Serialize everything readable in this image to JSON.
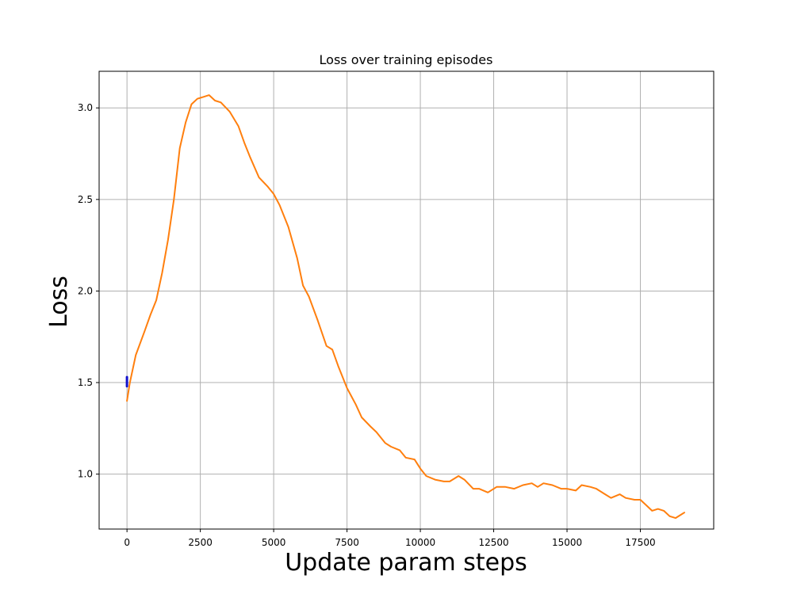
{
  "chart_data": {
    "type": "line",
    "title": "Loss over training episodes",
    "xlabel": "Update param steps",
    "ylabel": "Loss",
    "xlim": [
      -950,
      20000
    ],
    "ylim": [
      0.7,
      3.2
    ],
    "grid": true,
    "x_ticks": [
      0,
      2500,
      5000,
      7500,
      10000,
      12500,
      15000,
      17500
    ],
    "x_tick_labels": [
      "0",
      "2500",
      "5000",
      "7500",
      "10000",
      "12500",
      "15000",
      "17500"
    ],
    "y_ticks": [
      1.0,
      1.5,
      2.0,
      2.5,
      3.0
    ],
    "y_tick_labels": [
      "1.0",
      "1.5",
      "2.0",
      "2.5",
      "3.0"
    ],
    "series": [
      {
        "color": "#1111cc",
        "x": [
          0,
          0
        ],
        "y": [
          1.48,
          1.53
        ]
      },
      {
        "color": "#ff7f0e",
        "x": [
          0,
          100,
          300,
          600,
          800,
          1000,
          1200,
          1400,
          1600,
          1800,
          2000,
          2200,
          2400,
          2600,
          2800,
          3000,
          3200,
          3500,
          3800,
          4000,
          4200,
          4500,
          4800,
          5000,
          5200,
          5500,
          5800,
          6000,
          6200,
          6500,
          6800,
          7000,
          7200,
          7500,
          7800,
          8000,
          8300,
          8500,
          8800,
          9000,
          9300,
          9500,
          9800,
          10000,
          10200,
          10500,
          10800,
          11000,
          11300,
          11500,
          11800,
          12000,
          12300,
          12600,
          12900,
          13200,
          13500,
          13800,
          14000,
          14200,
          14500,
          14800,
          15000,
          15300,
          15500,
          15800,
          16000,
          16300,
          16500,
          16800,
          17000,
          17300,
          17500,
          17700,
          17900,
          18100,
          18300,
          18500,
          18700,
          18900,
          19000
        ],
        "y": [
          1.4,
          1.5,
          1.65,
          1.78,
          1.87,
          1.95,
          2.1,
          2.28,
          2.5,
          2.78,
          2.92,
          3.02,
          3.05,
          3.06,
          3.07,
          3.04,
          3.03,
          2.98,
          2.9,
          2.81,
          2.73,
          2.62,
          2.57,
          2.53,
          2.47,
          2.35,
          2.18,
          2.03,
          1.97,
          1.84,
          1.7,
          1.68,
          1.59,
          1.47,
          1.38,
          1.31,
          1.26,
          1.23,
          1.17,
          1.15,
          1.13,
          1.09,
          1.08,
          1.03,
          0.99,
          0.97,
          0.96,
          0.96,
          0.99,
          0.97,
          0.92,
          0.92,
          0.9,
          0.93,
          0.93,
          0.92,
          0.94,
          0.95,
          0.93,
          0.95,
          0.94,
          0.92,
          0.92,
          0.91,
          0.94,
          0.93,
          0.92,
          0.89,
          0.87,
          0.89,
          0.87,
          0.86,
          0.86,
          0.83,
          0.8,
          0.81,
          0.8,
          0.77,
          0.76,
          0.78,
          0.79
        ]
      }
    ]
  }
}
